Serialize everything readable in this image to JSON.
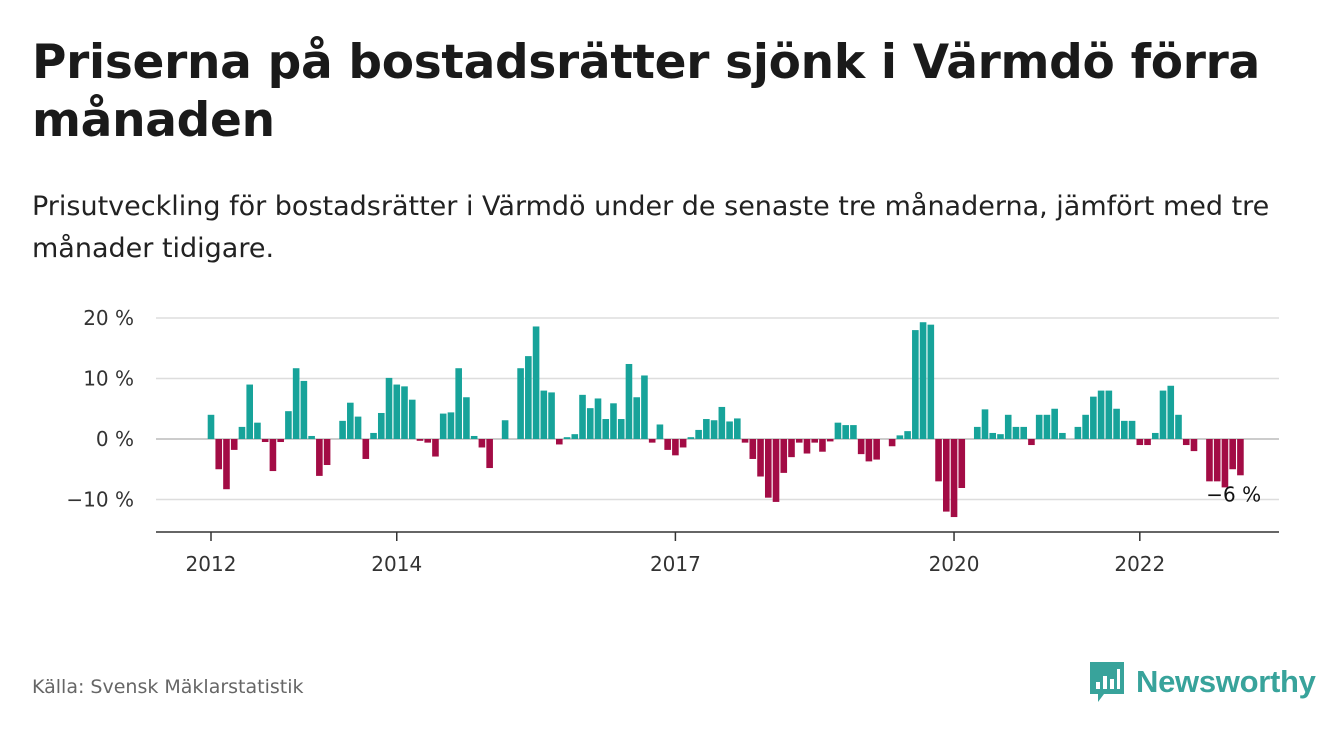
{
  "header": {
    "title": "Priserna på bostadsrätter sjönk i Värmdö förra månaden",
    "subtitle": "Prisutveckling för bostadsrätter i Värmdö under de senaste tre månaderna, jämfört med tre månader tidigare."
  },
  "footer": {
    "source": "Källa: Svensk Mäklarstatistik",
    "logo_text": "Newsworthy",
    "logo_icon": "bar-chart-speech-icon"
  },
  "colors": {
    "positive": "#17a39a",
    "negative": "#a30c45",
    "grid": "#dddddd",
    "axis": "#333333",
    "brand": "#38a39b"
  },
  "chart_data": {
    "type": "bar",
    "title": "Priserna på bostadsrätter sjönk i Värmdö förra månaden",
    "subtitle": "Prisutveckling för bostadsrätter i Värmdö under de senaste tre månaderna, jämfört med tre månader tidigare.",
    "xlabel": "",
    "ylabel": "",
    "ylim": [
      -15,
      20
    ],
    "y_ticks": [
      20,
      10,
      0,
      -10
    ],
    "y_tick_labels": [
      "20 %",
      "10 %",
      "0 %",
      "−10 %"
    ],
    "x_tick_labels": [
      "2012",
      "2014",
      "2017",
      "2020",
      "2022"
    ],
    "x_tick_index": [
      0,
      24,
      60,
      96,
      120
    ],
    "grid": true,
    "legend": "none",
    "series": [
      {
        "values": [
          4,
          -5,
          -8.3,
          -1.8,
          2,
          9,
          2.7,
          -0.5,
          -5.3,
          -0.5,
          4.6,
          11.7,
          9.6,
          0.5,
          -6.1,
          -4.3,
          0,
          3,
          6,
          3.7,
          -3.3,
          1,
          4.3,
          10.1,
          9,
          8.7,
          6.5,
          -0.3,
          -0.6,
          -2.9,
          4.2,
          4.4,
          11.7,
          6.9,
          0.5,
          -1.4,
          -4.8,
          0,
          3.1,
          0,
          11.7,
          13.7,
          18.6,
          8,
          7.7,
          -0.9,
          0.3,
          0.8,
          7.3,
          5.1,
          6.7,
          3.3,
          5.9,
          3.3,
          12.4,
          6.9,
          10.5,
          -0.6,
          2.4,
          -1.8,
          -2.7,
          -1.4,
          0.3,
          1.5,
          3.3,
          3.1,
          5.3,
          2.9,
          3.4,
          -0.6,
          -3.3,
          -6.2,
          -9.7,
          -10.4,
          -5.6,
          -3,
          -0.6,
          -2.4,
          -0.6,
          -2.1,
          -0.4,
          2.7,
          2.3,
          2.3,
          -2.5,
          -3.7,
          -3.4,
          0,
          -1.2,
          0.6,
          1.3,
          18,
          19.3,
          18.9,
          -7,
          -12,
          -12.9,
          -8.1,
          0,
          2,
          4.9,
          1,
          0.8,
          4,
          2,
          2,
          -1,
          4,
          4,
          5,
          1,
          0,
          2,
          4,
          7,
          8,
          8,
          5,
          3,
          3,
          -1,
          -1,
          1,
          8,
          8.8,
          4,
          -1,
          -2,
          0,
          -7,
          -7,
          -8,
          -5,
          -6
        ]
      }
    ],
    "annotations": [
      {
        "text": "−6 %",
        "index": 132
      }
    ]
  }
}
